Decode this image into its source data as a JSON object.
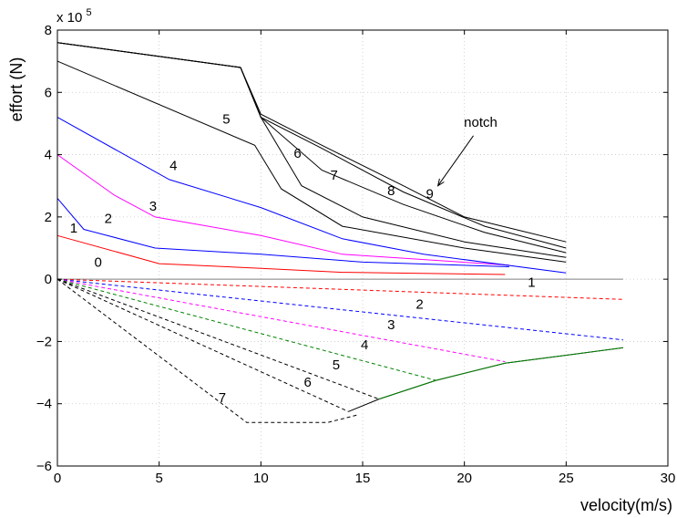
{
  "chart_data": {
    "type": "line",
    "xlabel": "velocity(m/s)",
    "ylabel": "effort (N)",
    "y_multiplier_prefix": "x 10",
    "y_multiplier_exponent": "5",
    "xlim": [
      0,
      30
    ],
    "ylim": [
      -6,
      8
    ],
    "xticks": [
      0,
      5,
      10,
      15,
      20,
      25,
      30
    ],
    "yticks": [
      -6,
      -4,
      -2,
      0,
      2,
      4,
      6,
      8
    ],
    "xtick_labels": [
      "0",
      "5",
      "10",
      "15",
      "20",
      "25",
      "30"
    ],
    "ytick_labels": [
      "−6",
      "−4",
      "−2",
      "0",
      "2",
      "4",
      "6",
      "8"
    ],
    "grid": true,
    "colors": {
      "black": "#000000",
      "red": "#ff0000",
      "blue": "#0000ff",
      "magenta": "#ff00ff",
      "green": "#008000",
      "gray": "#808080"
    },
    "series": [
      {
        "label": "0",
        "color": "#808080",
        "style": "solid",
        "x": [
          0,
          27.8
        ],
        "y": [
          0,
          0
        ]
      },
      {
        "label": "1",
        "color": "#ff0000",
        "style": "solid",
        "x": [
          0,
          5,
          10,
          14,
          22
        ],
        "y": [
          1.4,
          0.5,
          0.35,
          0.22,
          0.15
        ]
      },
      {
        "label": "2",
        "color": "#0000ff",
        "style": "solid",
        "x": [
          0,
          1.3,
          4.8,
          10,
          15,
          22.2
        ],
        "y": [
          2.6,
          1.6,
          1.0,
          0.8,
          0.55,
          0.4
        ]
      },
      {
        "label": "3",
        "color": "#ff00ff",
        "style": "solid",
        "x": [
          0,
          2.8,
          4.8,
          10,
          14,
          22.2
        ],
        "y": [
          4.0,
          2.7,
          2.0,
          1.4,
          0.8,
          0.45
        ]
      },
      {
        "label": "4",
        "color": "#0000ff",
        "style": "solid",
        "x": [
          0,
          5.5,
          10,
          14,
          18,
          25
        ],
        "y": [
          5.2,
          3.2,
          2.3,
          1.3,
          0.8,
          0.2
        ]
      },
      {
        "label": "5",
        "color": "#000000",
        "style": "solid",
        "x": [
          0,
          9.7,
          11,
          14,
          20,
          25
        ],
        "y": [
          7.0,
          4.3,
          2.9,
          1.7,
          1.0,
          0.55
        ]
      },
      {
        "label": "6",
        "color": "#000000",
        "style": "solid",
        "x": [
          0,
          9,
          10,
          12,
          15,
          20,
          25
        ],
        "y": [
          7.6,
          6.8,
          5.2,
          3.0,
          2.0,
          1.2,
          0.7
        ]
      },
      {
        "label": "7",
        "color": "#000000",
        "style": "solid",
        "x": [
          0,
          9,
          10,
          13,
          17,
          21,
          25
        ],
        "y": [
          7.6,
          6.8,
          5.2,
          3.5,
          2.4,
          1.5,
          0.85
        ]
      },
      {
        "label": "8",
        "color": "#000000",
        "style": "solid",
        "x": [
          0,
          9,
          10,
          13,
          17,
          21,
          25
        ],
        "y": [
          7.6,
          6.8,
          5.2,
          4.2,
          2.8,
          1.7,
          1.0
        ]
      },
      {
        "label": "9",
        "color": "#000000",
        "style": "solid",
        "x": [
          0,
          9,
          10,
          13,
          17,
          20,
          25
        ],
        "y": [
          7.6,
          6.8,
          5.3,
          4.3,
          3.0,
          2.0,
          1.2
        ]
      },
      {
        "label": "1",
        "color": "#ff0000",
        "style": "dashed",
        "x": [
          0,
          27.8
        ],
        "y": [
          0,
          -0.65
        ]
      },
      {
        "label": "2",
        "color": "#0000ff",
        "style": "dashed",
        "x": [
          0,
          27.8
        ],
        "y": [
          0,
          -1.95
        ]
      },
      {
        "label": "3",
        "color": "#ff00ff",
        "style": "dashed",
        "x": [
          0,
          22
        ],
        "y": [
          0,
          -2.65
        ]
      },
      {
        "label": "4",
        "color": "#008000",
        "style": "dashed",
        "x": [
          0,
          18.6
        ],
        "y": [
          0,
          -3.25
        ]
      },
      {
        "label": "5",
        "color": "#000000",
        "style": "dashed",
        "x": [
          0,
          15.8
        ],
        "y": [
          0,
          -3.85
        ]
      },
      {
        "label": "6",
        "color": "#000000",
        "style": "dashed",
        "x": [
          0,
          14.3
        ],
        "y": [
          0,
          -4.25
        ]
      },
      {
        "label": "7",
        "color": "#000000",
        "style": "dashed",
        "x": [
          0,
          9.3,
          13.3,
          14.8
        ],
        "y": [
          0,
          -4.6,
          -4.6,
          -4.35
        ]
      },
      {
        "label": "",
        "color": "#000000",
        "style": "solid",
        "x": [
          14.3,
          15.8,
          18.6,
          22,
          27.8
        ],
        "y": [
          -4.25,
          -3.85,
          -3.25,
          -2.7,
          -2.2
        ]
      },
      {
        "label": "",
        "color": "#008000",
        "style": "solid",
        "x": [
          15.8,
          18.6,
          22,
          27.8
        ],
        "y": [
          -3.85,
          -3.25,
          -2.7,
          -2.2
        ]
      }
    ],
    "annotations": [
      {
        "text": "notch",
        "x": 20.8,
        "y": 4.9,
        "arrow_to": [
          18.7,
          3.0
        ]
      },
      {
        "text": "0",
        "x": 2.0,
        "y": 0.4
      },
      {
        "text": "1",
        "x": 0.8,
        "y": 1.5
      },
      {
        "text": "2",
        "x": 2.5,
        "y": 1.8
      },
      {
        "text": "3",
        "x": 4.7,
        "y": 2.2
      },
      {
        "text": "4",
        "x": 5.7,
        "y": 3.5
      },
      {
        "text": "5",
        "x": 8.3,
        "y": 5.0
      },
      {
        "text": "6",
        "x": 11.8,
        "y": 3.9
      },
      {
        "text": "7",
        "x": 13.6,
        "y": 3.2
      },
      {
        "text": "8",
        "x": 16.4,
        "y": 2.7
      },
      {
        "text": "9",
        "x": 18.3,
        "y": 2.6
      },
      {
        "text": "1",
        "x": 23.3,
        "y": -0.25
      },
      {
        "text": "2",
        "x": 17.8,
        "y": -0.95
      },
      {
        "text": "3",
        "x": 16.4,
        "y": -1.6
      },
      {
        "text": "4",
        "x": 15.1,
        "y": -2.25
      },
      {
        "text": "5",
        "x": 13.7,
        "y": -2.9
      },
      {
        "text": "6",
        "x": 12.3,
        "y": -3.45
      },
      {
        "text": "7",
        "x": 8.1,
        "y": -3.95
      }
    ]
  }
}
